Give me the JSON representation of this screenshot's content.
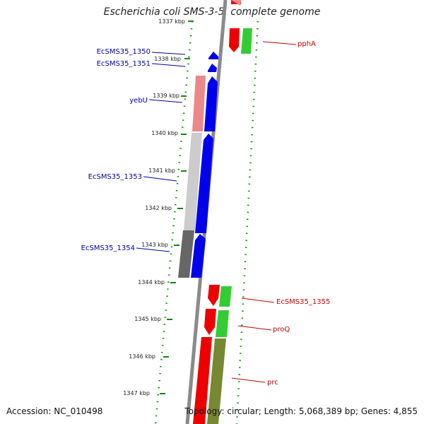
{
  "title": "Escherichia coli SMS-3-5, complete genome",
  "footer": {
    "accession": "Accession: NC_010498",
    "summary": "Topology: circular; Length: 5,068,389 bp; Genes: 4,855"
  },
  "ticks": [
    "1337 kbp",
    "1338 kbp",
    "1339 kbp",
    "1340 kbp",
    "1341 kbp",
    "1342 kbp",
    "1343 kbp",
    "1344 kbp",
    "1345 kbp",
    "1346 kbp",
    "1347 kbp"
  ],
  "left_labels": [
    "EcSMS35_1350",
    "EcSMS35_1351",
    "yebU",
    "EcSMS35_1353",
    "EcSMS35_1354"
  ],
  "right_labels": [
    "pphA",
    "EcSMS35_1355",
    "proQ",
    "prc"
  ],
  "colors": {
    "left_label": "#0000aa",
    "right_label": "#cc0000",
    "tick_mark": "#118811",
    "backbone": "#888888",
    "blue_gene": "#0000ee",
    "red_gene": "#ee0000",
    "pink_gene": "#ee8888",
    "green_gene": "#33cc33",
    "olive_gene": "#778833",
    "light_gray_gene": "#cccccc",
    "dark_gray_gene": "#666666"
  }
}
